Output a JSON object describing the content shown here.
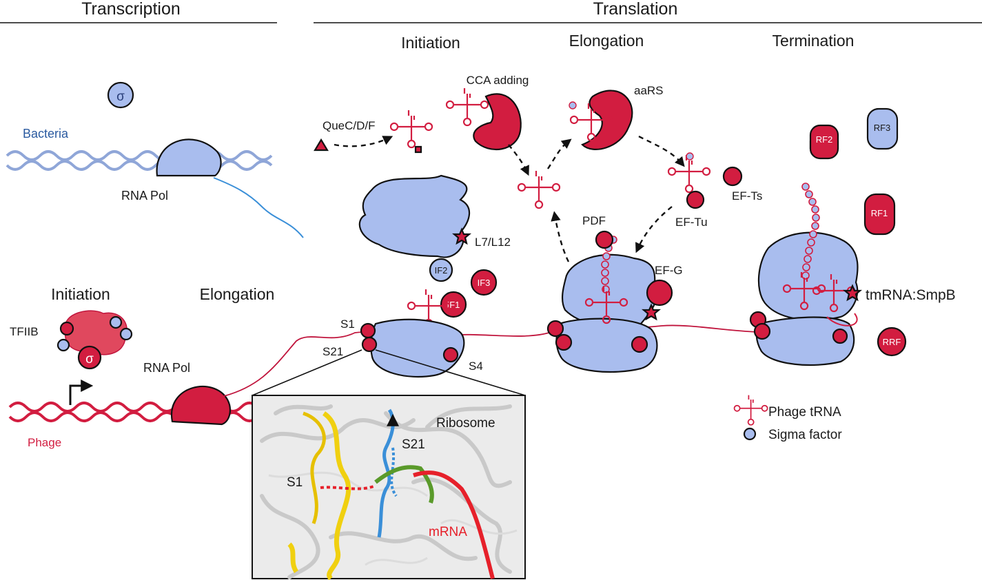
{
  "headers": {
    "transcription": "Transcription",
    "translation": "Translation"
  },
  "stages": {
    "initiation": "Initiation",
    "elongation": "Elongation",
    "termination": "Termination",
    "tx_initiation": "Initiation",
    "tx_elongation": "Elongation"
  },
  "labels": {
    "sigma_symbol": "σ",
    "bacteria": "Bacteria",
    "rna_pol_bacteria": "RNA Pol",
    "tfiib": "TFIIB",
    "rna_pol_phage": "RNA Pol",
    "phage": "Phage",
    "quec": "QueC/D/F",
    "cca": "CCA adding",
    "aars": "aaRS",
    "l7l12": "L7/L12",
    "if1": "IF1",
    "if2": "IF2",
    "if3": "IF3",
    "s1": "S1",
    "s21": "S21",
    "s4": "S4",
    "pdf": "PDF",
    "ef_tu": "EF-Tu",
    "ef_ts": "EF-Ts",
    "ef_g": "EF-G",
    "rf1": "RF1",
    "rf2": "RF2",
    "rf3": "RF3",
    "rrf": "RRF",
    "tmrna": "tmRNA:SmpB"
  },
  "inset": {
    "ribosome": "Ribosome",
    "s21": "S21",
    "s1": "S1",
    "mrna": "mRNA"
  },
  "legend": {
    "phage_trna": "Phage tRNA",
    "sigma_factor": "Sigma factor"
  },
  "colors": {
    "phage_red": "#d21d40",
    "host_blue": "#a9bdee",
    "dna_blue": "#8fa6d8",
    "mrna_line": "#c0143c",
    "bacteria_text": "#2a5aa0",
    "phage_text": "#d21d40"
  }
}
